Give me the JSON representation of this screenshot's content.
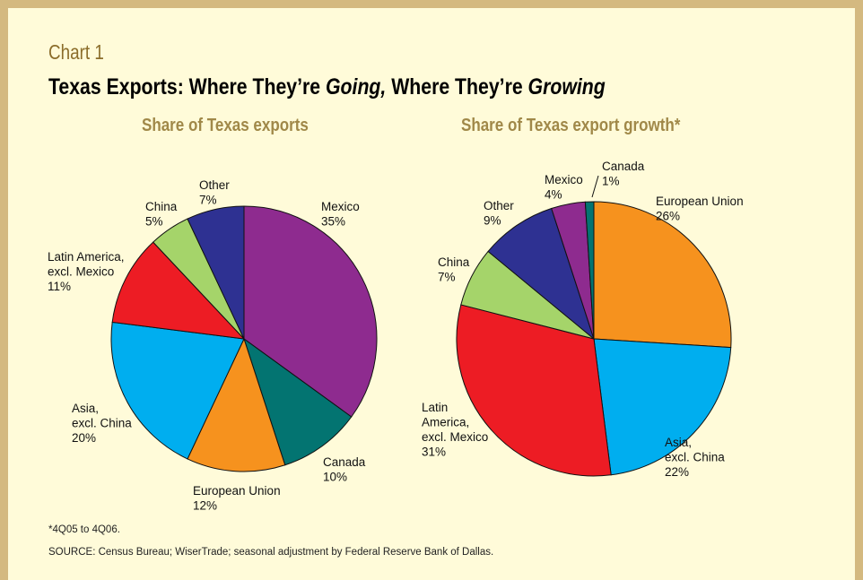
{
  "header": {
    "chart_label": "Chart 1",
    "title_parts": [
      "Texas Exports: Where They’re ",
      "Going,",
      " Where They’re ",
      "Growing"
    ]
  },
  "colors": {
    "background": "#fffbd9",
    "border": "#d4b980",
    "subtitle": "#a08848",
    "chart_label": "#8b6d2a"
  },
  "chart_data": [
    {
      "type": "pie",
      "title": "Share of Texas exports",
      "start": "12 o'clock",
      "direction": "clockwise",
      "slices": [
        {
          "name": "Mexico",
          "label": [
            "Mexico",
            "35%"
          ],
          "value": 35,
          "color": "#8e2b8f"
        },
        {
          "name": "Canada",
          "label": [
            "Canada",
            "10%"
          ],
          "value": 10,
          "color": "#037471"
        },
        {
          "name": "European Union",
          "label": [
            "European Union",
            "12%"
          ],
          "value": 12,
          "color": "#f6921e"
        },
        {
          "name": "Asia, excl. China",
          "label": [
            "Asia,",
            "excl. China",
            "20%"
          ],
          "value": 20,
          "color": "#00aeef"
        },
        {
          "name": "Latin America, excl. Mexico",
          "label": [
            "Latin America,",
            "excl. Mexico",
            "11%"
          ],
          "value": 11,
          "color": "#ed1c24"
        },
        {
          "name": "China",
          "label": [
            "China",
            "5%"
          ],
          "value": 5,
          "color": "#a5d46a"
        },
        {
          "name": "Other",
          "label": [
            "Other",
            "7%"
          ],
          "value": 7,
          "color": "#2e3192"
        }
      ]
    },
    {
      "type": "pie",
      "title": "Share of Texas export growth*",
      "start": "12 o'clock",
      "direction": "clockwise",
      "slices": [
        {
          "name": "European Union",
          "label": [
            "European Union",
            "26%"
          ],
          "value": 26,
          "color": "#f6921e"
        },
        {
          "name": "Asia, excl. China",
          "label": [
            "Asia,",
            "excl. China",
            "22%"
          ],
          "value": 22,
          "color": "#00aeef"
        },
        {
          "name": "Latin America, excl. Mexico",
          "label": [
            "Latin",
            "America,",
            "excl. Mexico",
            "31%"
          ],
          "value": 31,
          "color": "#ed1c24"
        },
        {
          "name": "China",
          "label": [
            "China",
            "7%"
          ],
          "value": 7,
          "color": "#a5d46a"
        },
        {
          "name": "Other",
          "label": [
            "Other",
            "9%"
          ],
          "value": 9,
          "color": "#2e3192"
        },
        {
          "name": "Mexico",
          "label": [
            "Mexico",
            "4%"
          ],
          "value": 4,
          "color": "#8e2b8f"
        },
        {
          "name": "Canada",
          "label": [
            "Canada",
            "1%"
          ],
          "value": 1,
          "color": "#037471"
        }
      ]
    }
  ],
  "footnotes": {
    "note": "*4Q05 to 4Q06.",
    "source": "SOURCE: Census Bureau; WiserTrade; seasonal adjustment by Federal Reserve Bank of Dallas."
  }
}
